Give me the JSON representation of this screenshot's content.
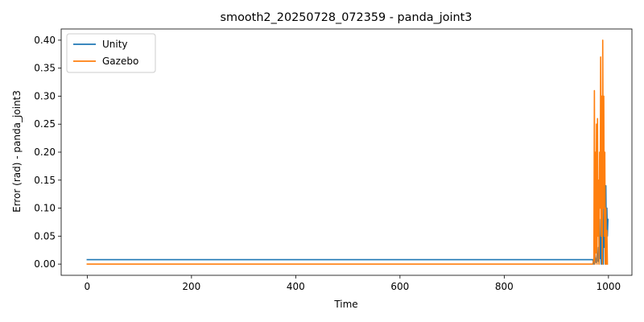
{
  "chart_data": {
    "type": "line",
    "title": "smooth2_20250728_072359 - panda_joint3",
    "xlabel": "Time",
    "ylabel": "Error (rad) - panda_joint3",
    "xlim": [
      -50,
      1045
    ],
    "ylim": [
      -0.02,
      0.42
    ],
    "xticks": [
      0,
      200,
      400,
      600,
      800,
      1000
    ],
    "yticks": [
      0.0,
      0.05,
      0.1,
      0.15,
      0.2,
      0.25,
      0.3,
      0.35,
      0.4
    ],
    "legend_position": "top-left",
    "grid": false,
    "series": [
      {
        "name": "Unity",
        "color": "#1f77b4",
        "x": [
          0,
          200,
          400,
          600,
          800,
          970,
          972,
          974,
          976,
          978,
          980,
          981,
          982,
          983,
          984,
          985,
          986,
          987,
          988,
          989,
          990,
          991,
          992,
          993,
          994,
          995,
          996,
          997,
          998,
          999
        ],
        "y": [
          0.008,
          0.008,
          0.008,
          0.008,
          0.008,
          0.008,
          0.0,
          0.012,
          0.003,
          0.02,
          0.005,
          0.03,
          0.0,
          0.08,
          0.01,
          0.05,
          0.0,
          0.1,
          0.02,
          0.06,
          0.0,
          0.12,
          0.03,
          0.09,
          0.0,
          0.14,
          0.04,
          0.1,
          0.05,
          0.08
        ]
      },
      {
        "name": "Gazebo",
        "color": "#ff7f0e",
        "x": [
          0,
          200,
          400,
          600,
          800,
          970,
          972,
          973,
          974,
          975,
          976,
          977,
          978,
          979,
          980,
          981,
          982,
          983,
          984,
          985,
          986,
          987,
          988,
          989,
          990,
          991,
          992,
          993,
          994,
          995,
          996,
          997,
          998
        ],
        "y": [
          0.0,
          0.0,
          0.0,
          0.0,
          0.0,
          0.0,
          0.01,
          0.31,
          0.0,
          0.2,
          0.02,
          0.25,
          0.0,
          0.26,
          0.05,
          0.15,
          0.0,
          0.2,
          0.1,
          0.37,
          0.05,
          0.3,
          0.0,
          0.4,
          0.1,
          0.3,
          0.05,
          0.2,
          0.0,
          0.1,
          0.0,
          0.06,
          0.0
        ]
      }
    ]
  }
}
